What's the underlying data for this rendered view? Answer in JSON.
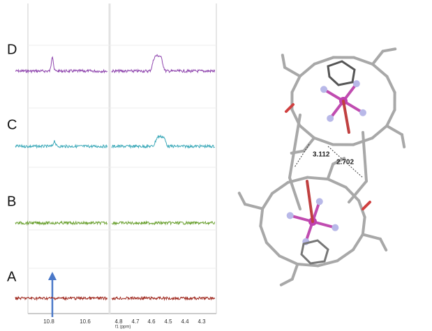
{
  "spectra": {
    "traces": [
      {
        "label": "D"
      },
      {
        "label": "C"
      },
      {
        "label": "B"
      },
      {
        "label": "A"
      }
    ],
    "xticks_left": [
      "10.8",
      "10.6"
    ],
    "xticks_right": [
      "4.8",
      "4.7",
      "4.6",
      "4.5",
      "4.4",
      "4.3"
    ],
    "xlabel": "f1 (ppm)"
  },
  "structure": {
    "distances": [
      "3.112",
      "2.702"
    ]
  }
}
